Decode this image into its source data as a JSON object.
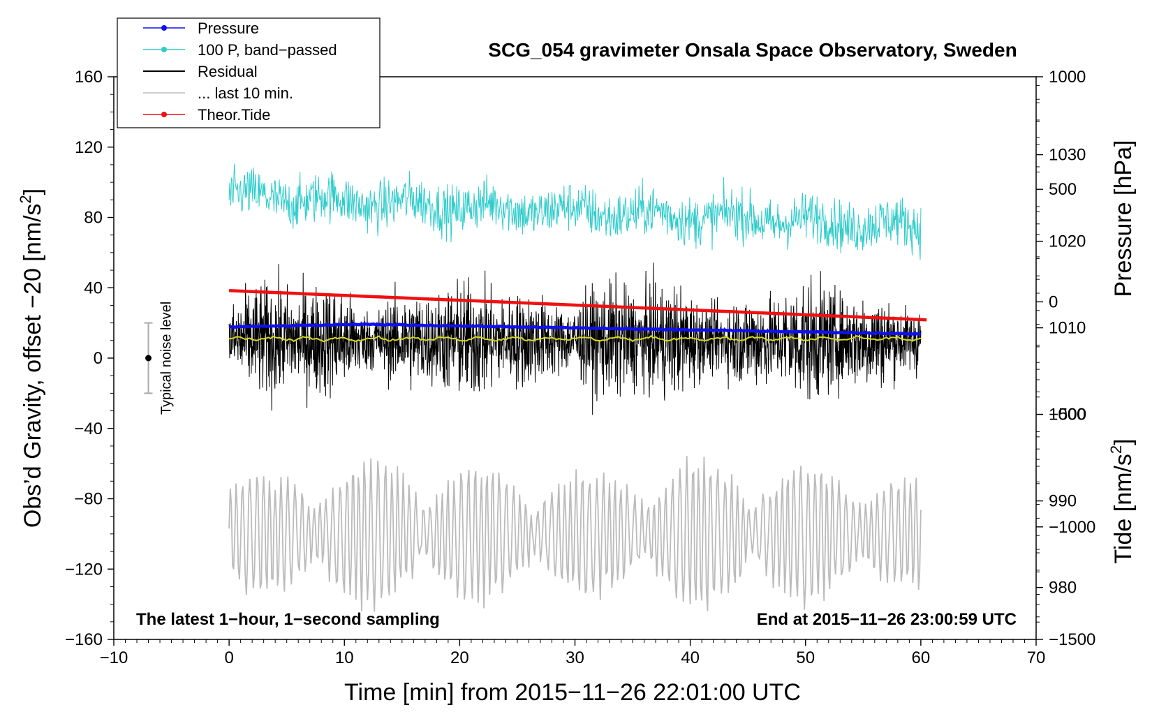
{
  "chart_data": {
    "type": "line",
    "title": "SCG_054 gravimeter Onsala Space Observatory, Sweden",
    "xlabel": "Time [min] from 2015−11−26 22:01:00 UTC",
    "ylabel_left": "Obs'd Gravity, offset −20 [nm/s²]",
    "ylabel_left_parts": [
      "Obs’d Gravity, offset −20 [nm/s",
      "2",
      "]"
    ],
    "ylabel_pressure": "Pressure [hPa]",
    "ylabel_tide_parts": [
      "Tide [nm/s",
      "2",
      "]"
    ],
    "xlim": [
      -10,
      70
    ],
    "ylim_left": [
      -160,
      160
    ],
    "x_ticks": [
      "−10",
      "0",
      "10",
      "20",
      "30",
      "40",
      "50",
      "60",
      "70"
    ],
    "x_tick_values": [
      -10,
      0,
      10,
      20,
      30,
      40,
      50,
      60,
      70
    ],
    "y_ticks_left": [
      "160",
      "120",
      "80",
      "40",
      "0",
      "−40",
      "−80",
      "−120",
      "−160"
    ],
    "y_tick_values_left": [
      160,
      120,
      80,
      40,
      0,
      -40,
      -80,
      -120,
      -160
    ],
    "pressure_axis": {
      "range": [
        974,
        1039
      ],
      "ticks": [
        "1030",
        "1020",
        "1010",
        "1000",
        "990",
        "980"
      ],
      "tick_values": [
        1030,
        1020,
        1010,
        1000,
        990,
        980
      ]
    },
    "tide_axis": {
      "range": [
        -1500,
        1000
      ],
      "ticks": [
        "1000",
        "500",
        "0",
        "−500",
        "−1000",
        "−1500"
      ],
      "tick_values": [
        1000,
        500,
        0,
        -500,
        -1000,
        -1500
      ]
    },
    "legend": [
      {
        "label": "Pressure",
        "color": "#1010ee",
        "marker": true
      },
      {
        "label": "100 P, band−passed",
        "color": "#30cccc",
        "marker": true
      },
      {
        "label": "Residual",
        "color": "#000000",
        "marker": false
      },
      {
        "label": "... last 10 min.",
        "color": "#bbbbbb",
        "marker": false
      },
      {
        "label": "Theor.Tide",
        "color": "#ee1111",
        "marker": true
      }
    ],
    "series": [
      {
        "name": "Pressure",
        "axis": "pressure",
        "color": "#1010ee",
        "x_range": [
          0,
          60
        ],
        "start": 1010.1,
        "peak": 1010.4,
        "end": 1009.3,
        "unit": "hPa"
      },
      {
        "name": "100 P, band−passed",
        "axis": "left",
        "color": "#30cccc",
        "x_range": [
          0,
          60
        ],
        "center_start": 92,
        "center_end": 75,
        "amplitude": 8,
        "range_observed": [
          42,
          107
        ]
      },
      {
        "name": "Residual",
        "axis": "left",
        "color": "#000000",
        "x_range": [
          0,
          60
        ],
        "center": 10,
        "amplitude": 18,
        "range_observed": [
          -45,
          53
        ]
      },
      {
        "name": "Residual smoothed",
        "axis": "left",
        "color": "#d8d820",
        "x_range": [
          0,
          60
        ],
        "value": 11
      },
      {
        "name": "... last 10 min.",
        "axis": "left",
        "color": "#bbbbbb",
        "x_range": [
          0,
          60
        ],
        "center": -100,
        "amplitude": 25,
        "range_observed": [
          -147,
          -52
        ]
      },
      {
        "name": "Theor.Tide",
        "axis": "tide",
        "color": "#ee1111",
        "x_range": [
          0,
          60.5
        ],
        "start": 50,
        "end": -80,
        "unit": "nm/s²"
      }
    ],
    "noise_bar": {
      "label": "Typical noise level",
      "x": -7,
      "center": 0,
      "low": -20,
      "high": 20
    },
    "annotations": {
      "left": "The latest 1−hour, 1−second sampling",
      "right": "End at 2015−11−26 23:00:59 UTC"
    },
    "grid": false,
    "legend_position": "top-left"
  }
}
